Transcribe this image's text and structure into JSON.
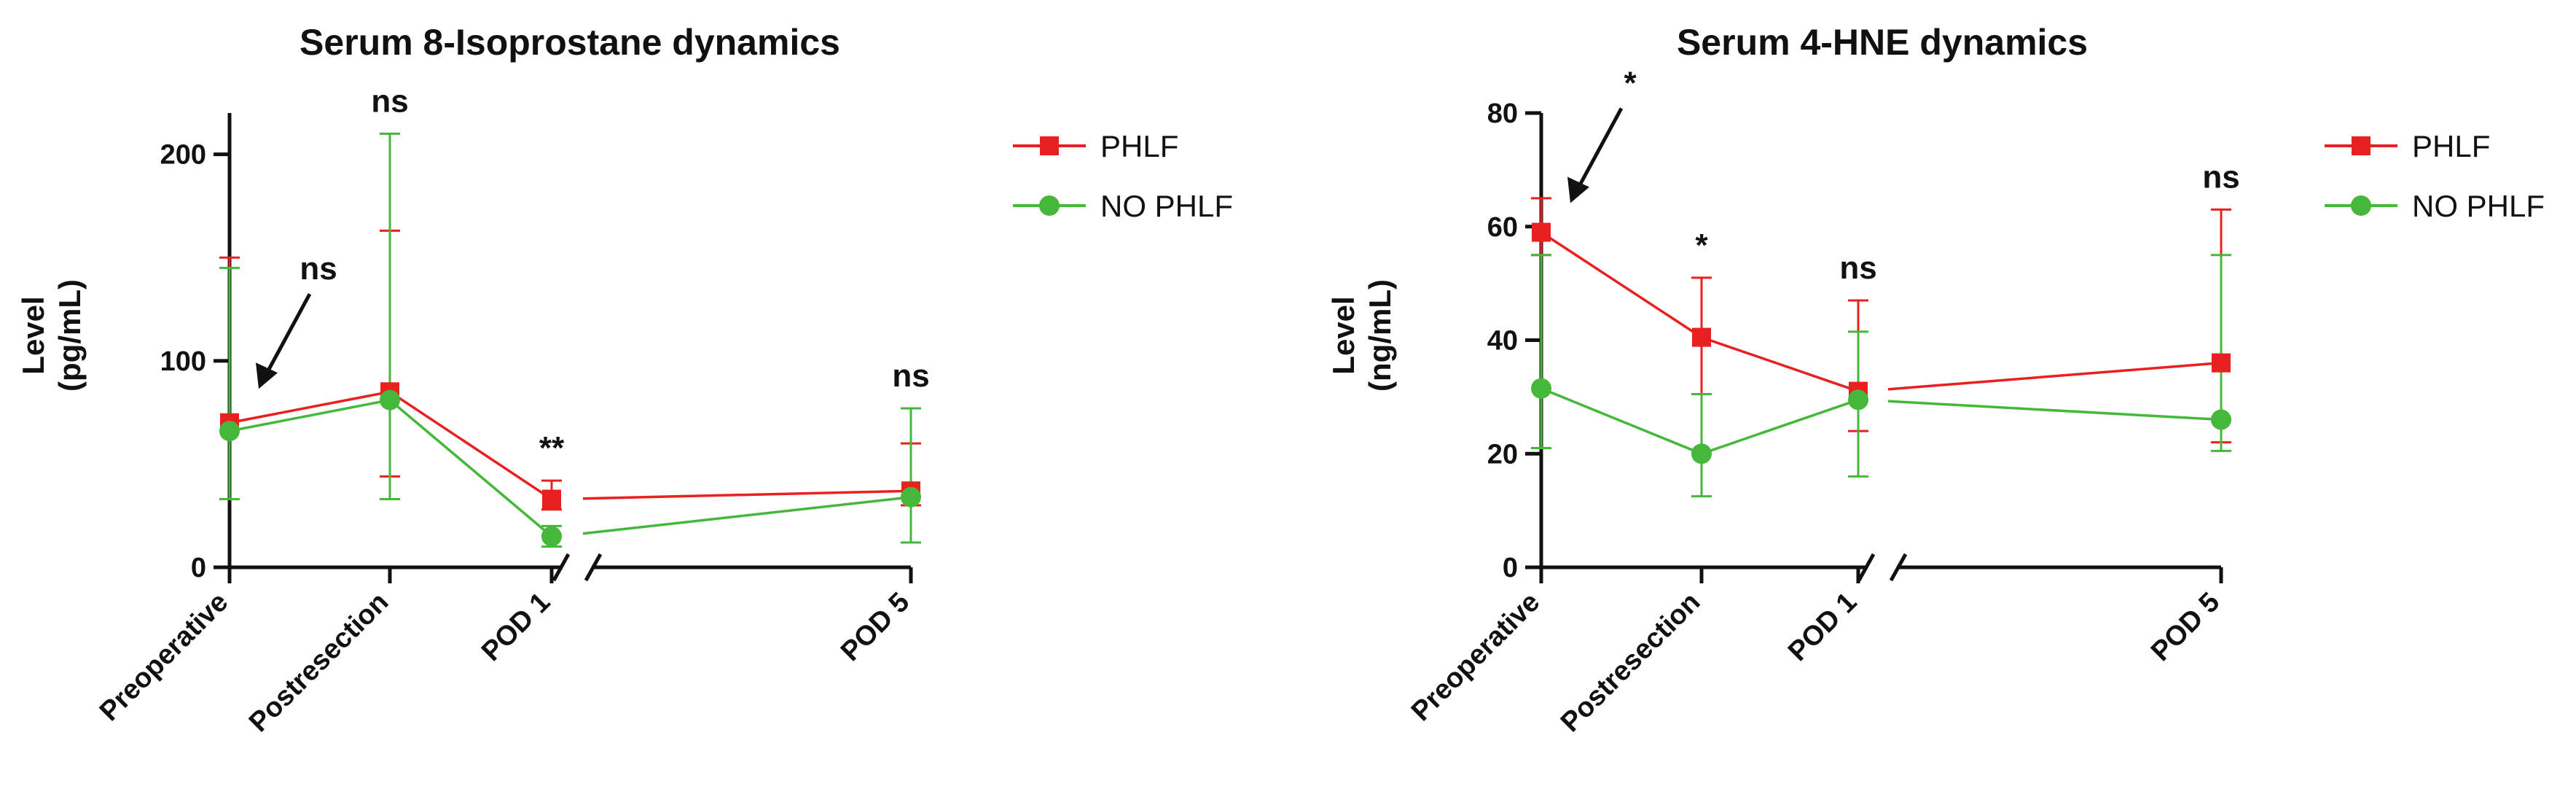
{
  "chart_data": [
    {
      "type": "line",
      "title": "Serum 8-Isoprostane dynamics",
      "ylabel": [
        "Level",
        "(pg/mL)"
      ],
      "xlabel": "",
      "ylim": [
        0,
        220
      ],
      "yticks": [
        0,
        100,
        200
      ],
      "categories": [
        "Preoperative",
        "Postresection",
        "POD 1",
        "POD 5"
      ],
      "axis_break_after": "POD 1",
      "legend_position": "right",
      "grid": false,
      "series": [
        {
          "name": "PHLF",
          "color": "#e8201f",
          "marker": "square",
          "values": [
            70,
            85,
            33,
            37
          ],
          "err_low": [
            33,
            44,
            28,
            30
          ],
          "err_high": [
            150,
            163,
            42,
            60
          ]
        },
        {
          "name": "NO PHLF",
          "color": "#45b73a",
          "marker": "circle",
          "values": [
            66,
            81,
            15,
            34
          ],
          "err_low": [
            33,
            33,
            10,
            12
          ],
          "err_high": [
            145,
            210,
            20,
            77
          ]
        }
      ],
      "annotations": [
        {
          "category": "Preoperative",
          "text": "ns",
          "arrow": true
        },
        {
          "category": "Postresection",
          "text": "ns",
          "arrow": false
        },
        {
          "category": "POD 1",
          "text": "**",
          "arrow": false
        },
        {
          "category": "POD 5",
          "text": "ns",
          "arrow": false
        }
      ]
    },
    {
      "type": "line",
      "title": "Serum 4-HNE dynamics",
      "ylabel": [
        "Level",
        "(ng/mL)"
      ],
      "xlabel": "",
      "ylim": [
        0,
        80
      ],
      "yticks": [
        0,
        20,
        40,
        60,
        80
      ],
      "categories": [
        "Preoperative",
        "Postresection",
        "POD 1",
        "POD 5"
      ],
      "axis_break_after": "POD 1",
      "legend_position": "right",
      "grid": false,
      "series": [
        {
          "name": "PHLF",
          "color": "#e8201f",
          "marker": "square",
          "values": [
            59,
            40.5,
            31,
            36
          ],
          "err_low": [
            55,
            30.5,
            24,
            22
          ],
          "err_high": [
            65,
            51,
            47,
            63
          ]
        },
        {
          "name": "NO PHLF",
          "color": "#45b73a",
          "marker": "circle",
          "values": [
            31.5,
            20,
            29.5,
            26
          ],
          "err_low": [
            21,
            12.5,
            16,
            20.5
          ],
          "err_high": [
            55,
            30.5,
            41.5,
            55
          ]
        }
      ],
      "annotations": [
        {
          "category": "Preoperative",
          "text": "*",
          "arrow": true
        },
        {
          "category": "Postresection",
          "text": "*",
          "arrow": false
        },
        {
          "category": "POD 1",
          "text": "ns",
          "arrow": false
        },
        {
          "category": "POD 5",
          "text": "ns",
          "arrow": false
        }
      ]
    }
  ]
}
